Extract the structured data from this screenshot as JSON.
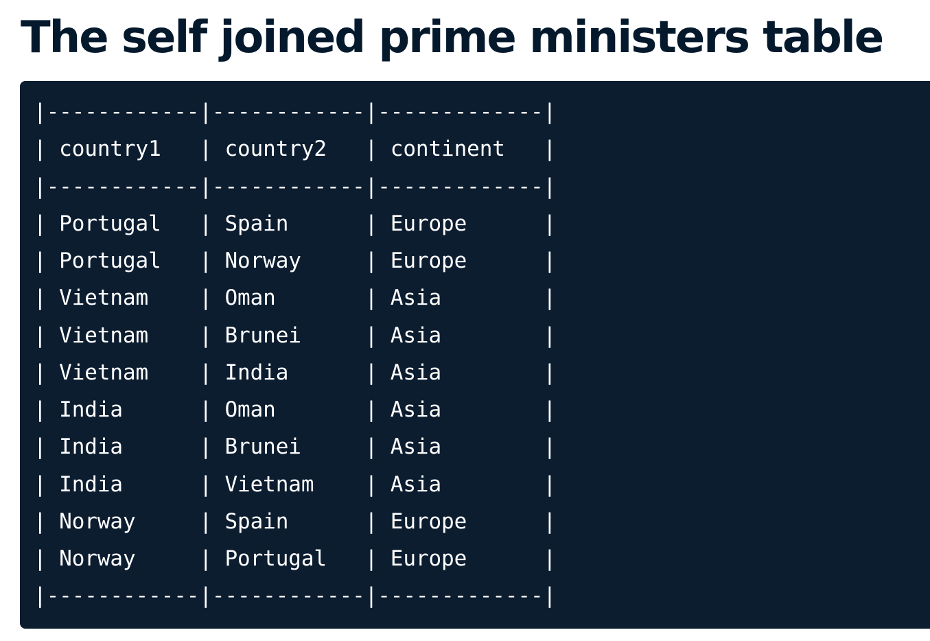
{
  "title": "The self joined prime ministers table",
  "table": {
    "columns": [
      "country1",
      "country2",
      "continent"
    ],
    "rows": [
      [
        "Portugal",
        "Spain",
        "Europe"
      ],
      [
        "Portugal",
        "Norway",
        "Europe"
      ],
      [
        "Vietnam",
        "Oman",
        "Asia"
      ],
      [
        "Vietnam",
        "Brunei",
        "Asia"
      ],
      [
        "Vietnam",
        "India",
        "Asia"
      ],
      [
        "India",
        "Oman",
        "Asia"
      ],
      [
        "India",
        "Brunei",
        "Asia"
      ],
      [
        "India",
        "Vietnam",
        "Asia"
      ],
      [
        "Norway",
        "Spain",
        "Europe"
      ],
      [
        "Norway",
        "Portugal",
        "Europe"
      ]
    ]
  },
  "colors": {
    "title": "#05192d",
    "code_background": "#0d1d30",
    "code_text": "#ffffff"
  }
}
